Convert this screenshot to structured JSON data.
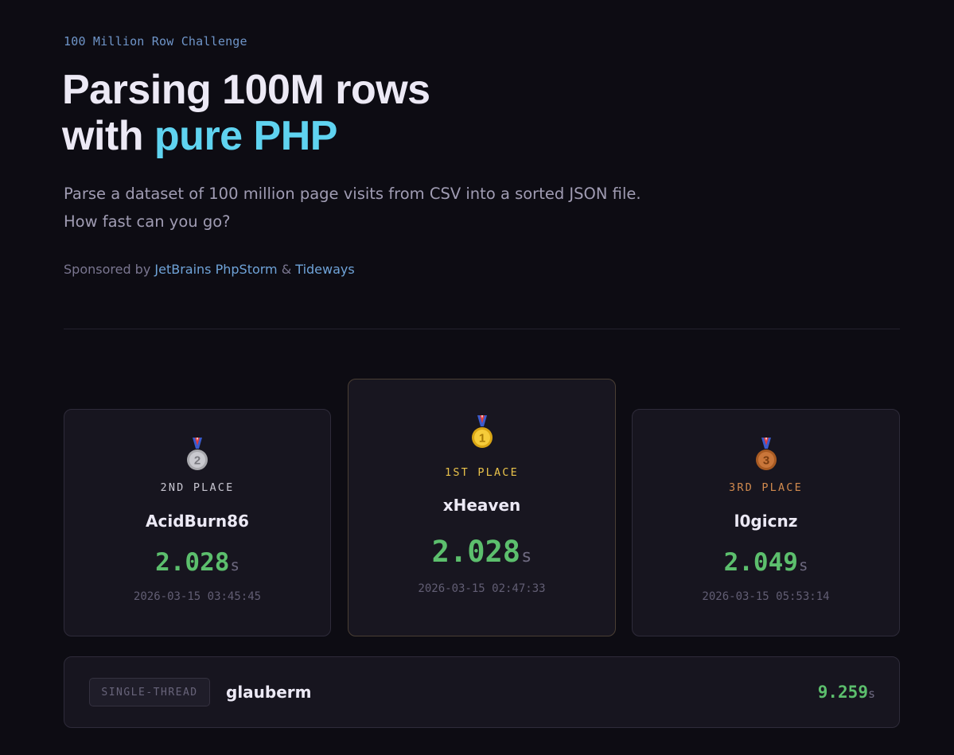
{
  "header": {
    "eyebrow": "100 Million Row Challenge",
    "title_line1": "Parsing 100M rows",
    "title_line2_prefix": "with ",
    "title_line2_accent": "pure PHP",
    "description": "Parse a dataset of 100 million page visits from CSV into a sorted JSON file. How fast can you go?",
    "sponsor_prefix": "Sponsored by ",
    "sponsor_1": "JetBrains PhpStorm",
    "sponsor_sep": " & ",
    "sponsor_2": "Tideways"
  },
  "podium": [
    {
      "place": "2ND PLACE",
      "name": "AcidBurn86",
      "time": "2.028",
      "unit": "s",
      "date": "2026-03-15 03:45:45",
      "medal": "silver-medal-icon",
      "number": "2",
      "color": "#c7c7c7"
    },
    {
      "place": "1ST PLACE",
      "name": "xHeaven",
      "time": "2.028",
      "unit": "s",
      "date": "2026-03-15 02:47:33",
      "medal": "gold-medal-icon",
      "number": "1",
      "color": "#f0c419"
    },
    {
      "place": "3RD PLACE",
      "name": "l0gicnz",
      "time": "2.049",
      "unit": "s",
      "date": "2026-03-15 05:53:14",
      "medal": "bronze-medal-icon",
      "number": "3",
      "color": "#cd7a3a"
    }
  ],
  "single_thread": {
    "badge": "SINGLE-THREAD",
    "name": "glauberm",
    "time": "9.259",
    "unit": "s"
  },
  "colors": {
    "accent": "#5fd3f0",
    "time_green": "#5cbf6d",
    "gold": "#e9c24a",
    "silver": "#c9c7d2",
    "bronze": "#d18a4e",
    "link": "#6fa3d8"
  }
}
